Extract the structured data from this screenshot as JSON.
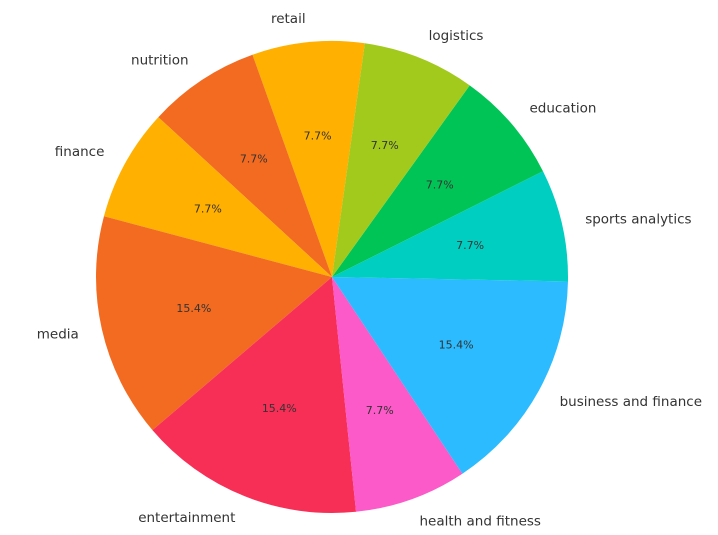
{
  "chart_data": {
    "type": "pie",
    "start_angle_deg": 82,
    "direction": "counterclockwise",
    "slices": [
      {
        "label": "retail",
        "value": 7.7,
        "pct_label": "7.7%",
        "color": "#FFB000"
      },
      {
        "label": "nutrition",
        "value": 7.7,
        "pct_label": "7.7%",
        "color": "#F26B21"
      },
      {
        "label": "finance",
        "value": 7.7,
        "pct_label": "7.7%",
        "color": "#FFB000"
      },
      {
        "label": "media",
        "value": 15.4,
        "pct_label": "15.4%",
        "color": "#F26B21"
      },
      {
        "label": "entertainment",
        "value": 15.4,
        "pct_label": "15.4%",
        "color": "#F72F56"
      },
      {
        "label": "health and fitness",
        "value": 7.7,
        "pct_label": "7.7%",
        "color": "#FB5AC8"
      },
      {
        "label": "business and finance",
        "value": 15.4,
        "pct_label": "15.4%",
        "color": "#2BBBFE"
      },
      {
        "label": "sports analytics",
        "value": 7.7,
        "pct_label": "7.7%",
        "color": "#00CEC1"
      },
      {
        "label": "education",
        "value": 7.7,
        "pct_label": "7.7%",
        "color": "#00C556"
      },
      {
        "label": "logistics",
        "value": 7.7,
        "pct_label": "7.7%",
        "color": "#A2CA1D"
      }
    ]
  }
}
